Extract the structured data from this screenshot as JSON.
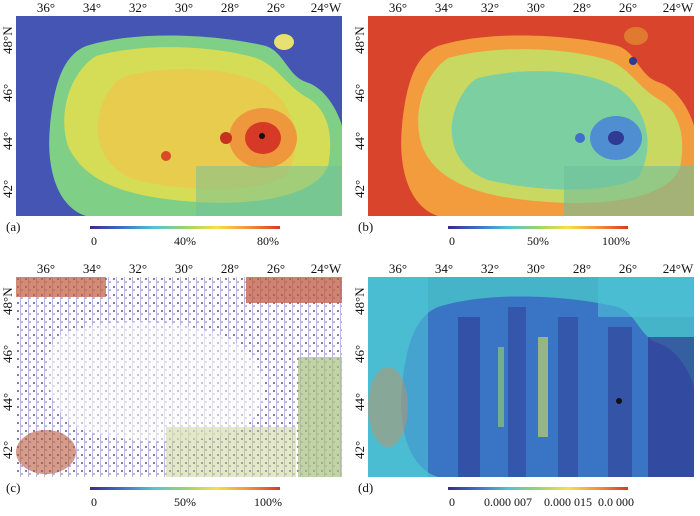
{
  "lon_ticks": [
    "36°",
    "34°",
    "32°",
    "30°",
    "28°",
    "26°",
    "24°W"
  ],
  "lat_ticks": [
    "48°N",
    "46°",
    "44°",
    "42°"
  ],
  "panels": [
    {
      "id": "a",
      "label": "(a)",
      "colorbar_ticks": [
        "0",
        "40%",
        "80%"
      ],
      "colorbar_range": [
        0,
        0.8
      ],
      "colors": [
        "#3d2a8a",
        "#3f6fc7",
        "#4fc3d8",
        "#9ad46a",
        "#f5e04a",
        "#f5913c",
        "#d83a26"
      ]
    },
    {
      "id": "b",
      "label": "(b)",
      "colorbar_ticks": [
        "0",
        "50%",
        "100%"
      ],
      "colorbar_range": [
        0,
        1.0
      ],
      "colors": [
        "#3d2a8a",
        "#3f6fc7",
        "#4fc3d8",
        "#9ad46a",
        "#f5e04a",
        "#f5913c",
        "#d83a26"
      ]
    },
    {
      "id": "c",
      "label": "(c)",
      "colorbar_ticks": [
        "0",
        "50%",
        "100%"
      ],
      "colorbar_range": [
        0,
        1.0
      ],
      "colors": [
        "#3d2a8a",
        "#3f6fc7",
        "#4fc3d8",
        "#9ad46a",
        "#f5e04a",
        "#f5913c",
        "#d83a26"
      ]
    },
    {
      "id": "d",
      "label": "(d)",
      "colorbar_ticks": [
        "0",
        "0.000 007",
        "0.000 015",
        "0.0 000"
      ],
      "colorbar_range": [
        0,
        2e-05
      ],
      "colors": [
        "#3d2a8a",
        "#3f6fc7",
        "#4fc3d8",
        "#9ad46a",
        "#f5e04a",
        "#f5913c",
        "#d83a26"
      ]
    }
  ]
}
